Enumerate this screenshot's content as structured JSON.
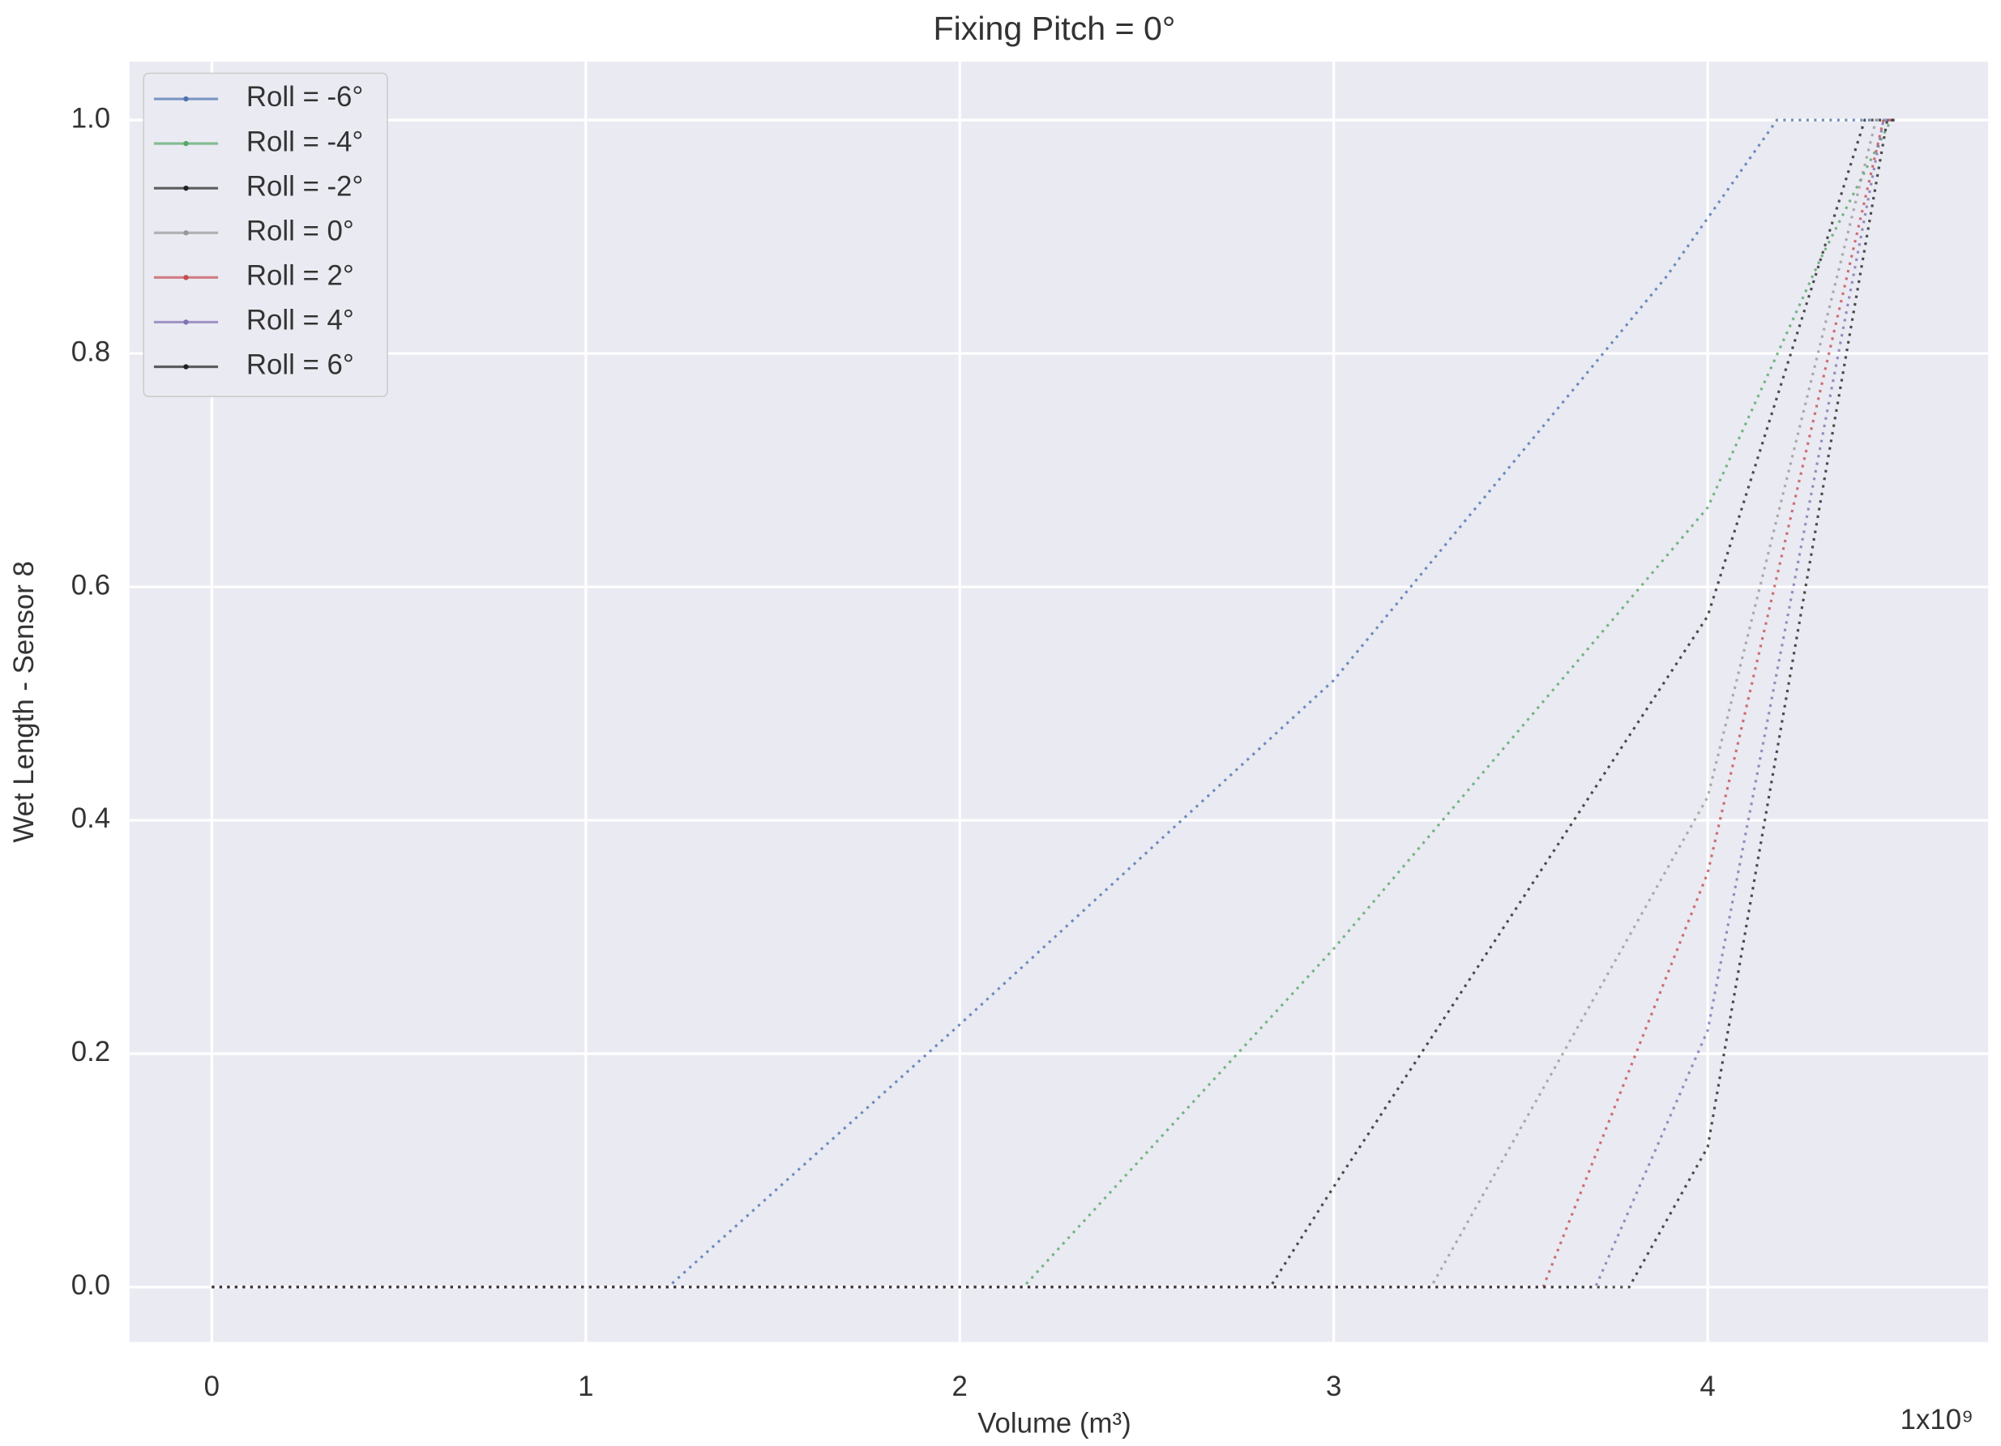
{
  "chart_data": {
    "type": "line",
    "title": "Fixing Pitch = 0°",
    "x_label": "Volume (m³)",
    "y_label": "Wet Length - Sensor 8",
    "x_offset_label": "1x10⁹",
    "xlim": [
      -0.22,
      4.75
    ],
    "ylim": [
      -0.047,
      1.05
    ],
    "xticks": [
      0,
      1,
      2,
      3,
      4
    ],
    "yticks": [
      {
        "value": 0,
        "label": "0.0"
      },
      0.2,
      0.4,
      0.6,
      0.8,
      {
        "value": 1,
        "label": "1.0"
      }
    ],
    "grid": true,
    "legend": "upper left",
    "series": [
      {
        "name": "Roll = -6°",
        "color": "#4c72b0",
        "x": [
          0,
          1.22,
          2.0,
          3.0,
          3.89,
          4.185,
          4.5
        ],
        "values": [
          0,
          0,
          0.225,
          0.52,
          0.866,
          1,
          1
        ]
      },
      {
        "name": "Roll = -4°",
        "color": "#55a868",
        "x": [
          0,
          2.17,
          3.0,
          4.0,
          4.3,
          4.49,
          4.5
        ],
        "values": [
          0,
          0,
          0.29,
          0.668,
          0.88,
          1,
          1
        ]
      },
      {
        "name": "Roll = -2°",
        "color": "#222222",
        "x": [
          0,
          2.83,
          3.0,
          4.0,
          4.42,
          4.5
        ],
        "values": [
          0,
          0,
          0.086,
          0.575,
          1,
          1
        ]
      },
      {
        "name": "Roll = 0°",
        "color": "#999999",
        "x": [
          0,
          3.26,
          4.0,
          4.45,
          4.5
        ],
        "values": [
          0,
          0,
          0.42,
          1,
          1
        ]
      },
      {
        "name": "Roll = 2°",
        "color": "#c44e52",
        "x": [
          0,
          3.56,
          4.0,
          4.47,
          4.5
        ],
        "values": [
          0,
          0,
          0.355,
          1,
          1
        ]
      },
      {
        "name": "Roll = 4°",
        "color": "#8172b2",
        "x": [
          0,
          3.7,
          4.0,
          4.47,
          4.5
        ],
        "values": [
          0,
          0,
          0.22,
          1,
          1
        ]
      },
      {
        "name": "Roll = 6°",
        "color": "#222222",
        "x": [
          0,
          3.79,
          4.0,
          4.48,
          4.5
        ],
        "values": [
          0,
          0,
          0.12,
          1,
          1
        ]
      }
    ]
  }
}
